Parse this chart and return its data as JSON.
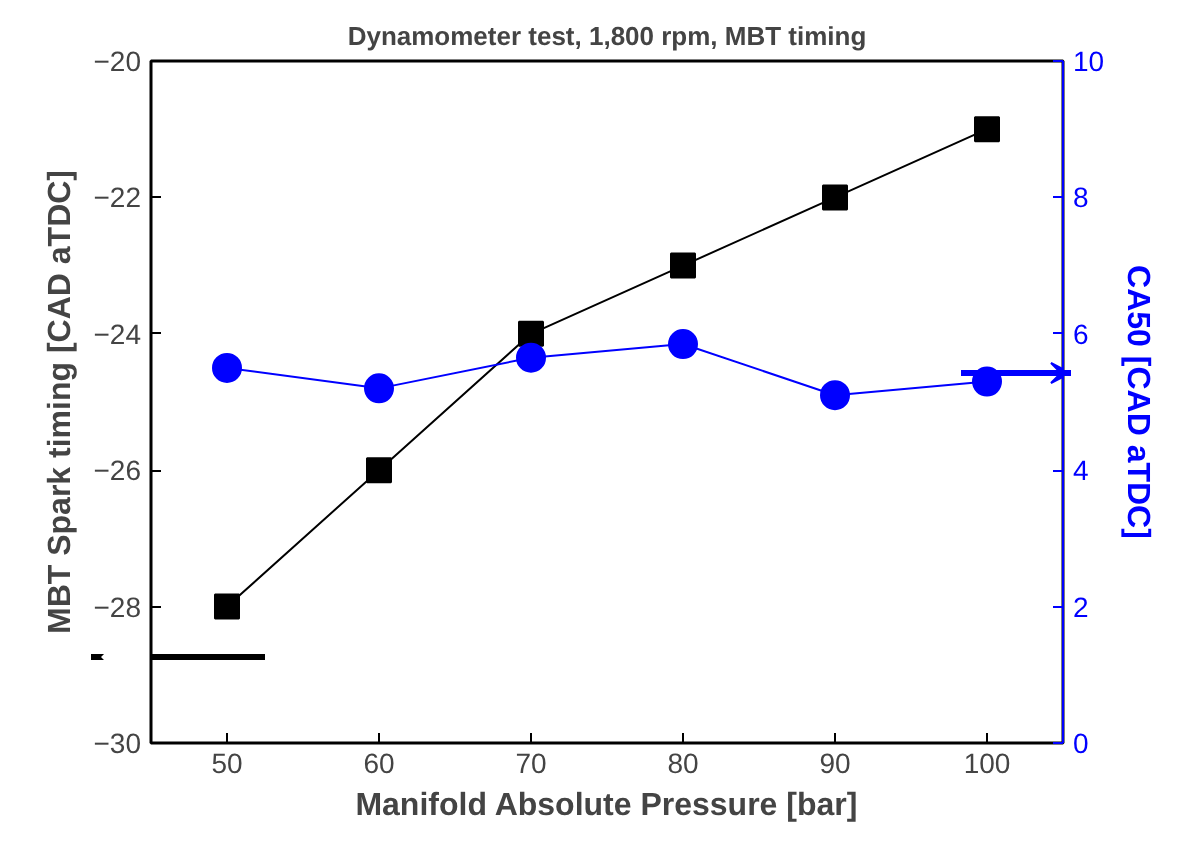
{
  "chart_data": {
    "type": "line",
    "title": "Dynamometer test, 1,800 rpm, MBT timing",
    "xlabel": "Manifold Absolute Pressure [bar]",
    "ylabel": "MBT Spark timing [CAD aTDC]",
    "y2label": "CA50 [CAD aTDC]",
    "x": [
      50,
      60,
      70,
      80,
      90,
      100
    ],
    "series": [
      {
        "color": "#000000",
        "marker": "square",
        "values": [
          -28,
          -26,
          -24,
          -23,
          -22,
          -21
        ]
      },
      {
        "color": "#0000ff",
        "marker": "circle",
        "axis": "y2",
        "values": [
          5.5,
          5.2,
          5.65,
          5.85,
          5.1,
          5.3
        ]
      }
    ],
    "xlim": [
      45,
      105
    ],
    "xticks": [
      50,
      60,
      70,
      80,
      90,
      100
    ],
    "ylim": [
      -30,
      -20
    ],
    "yticks": [
      -30,
      -28,
      -26,
      -24,
      -22,
      -20
    ],
    "y2lim": [
      0,
      10
    ],
    "y2ticks": [
      0,
      2,
      4,
      6,
      8,
      10
    ],
    "grid": false
  }
}
